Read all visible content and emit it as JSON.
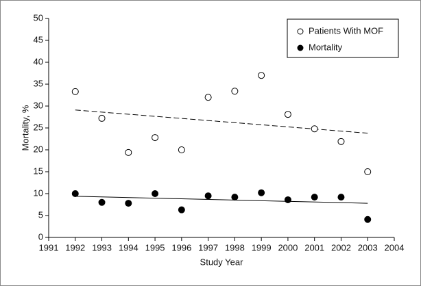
{
  "chart_data": {
    "type": "scatter",
    "xlabel": "Study Year",
    "ylabel": "Mortality, %",
    "xlim": [
      1991,
      2004
    ],
    "xticks": [
      1991,
      1992,
      1993,
      1994,
      1995,
      1996,
      1997,
      1998,
      1999,
      2000,
      2001,
      2002,
      2003,
      2004
    ],
    "ylim": [
      0,
      50
    ],
    "yticks": [
      0,
      5,
      10,
      15,
      20,
      25,
      30,
      35,
      40,
      45,
      50
    ],
    "legend": "upper right",
    "series": [
      {
        "name": "Patients With MOF",
        "color": "#000000",
        "filled": false,
        "x": [
          1992,
          1993,
          1994,
          1995,
          1996,
          1997,
          1998,
          1999,
          2000,
          2001,
          2002,
          2003
        ],
        "values": [
          33.3,
          27.2,
          19.4,
          22.8,
          20.0,
          32.0,
          33.4,
          37.0,
          28.1,
          24.8,
          21.9,
          15.0
        ],
        "trend": {
          "x": [
            1992,
            2003
          ],
          "values": [
            29.1,
            23.8
          ],
          "style": "dashed"
        }
      },
      {
        "name": "Mortality",
        "color": "#000000",
        "filled": true,
        "x": [
          1992,
          1993,
          1994,
          1995,
          1996,
          1997,
          1998,
          1999,
          2000,
          2001,
          2002,
          2003
        ],
        "values": [
          10.0,
          8.0,
          7.8,
          10.0,
          6.3,
          9.5,
          9.2,
          10.2,
          8.6,
          9.2,
          9.2,
          4.1
        ],
        "trend": {
          "x": [
            1992,
            2003
          ],
          "values": [
            9.4,
            7.8
          ],
          "style": "solid"
        }
      }
    ]
  }
}
